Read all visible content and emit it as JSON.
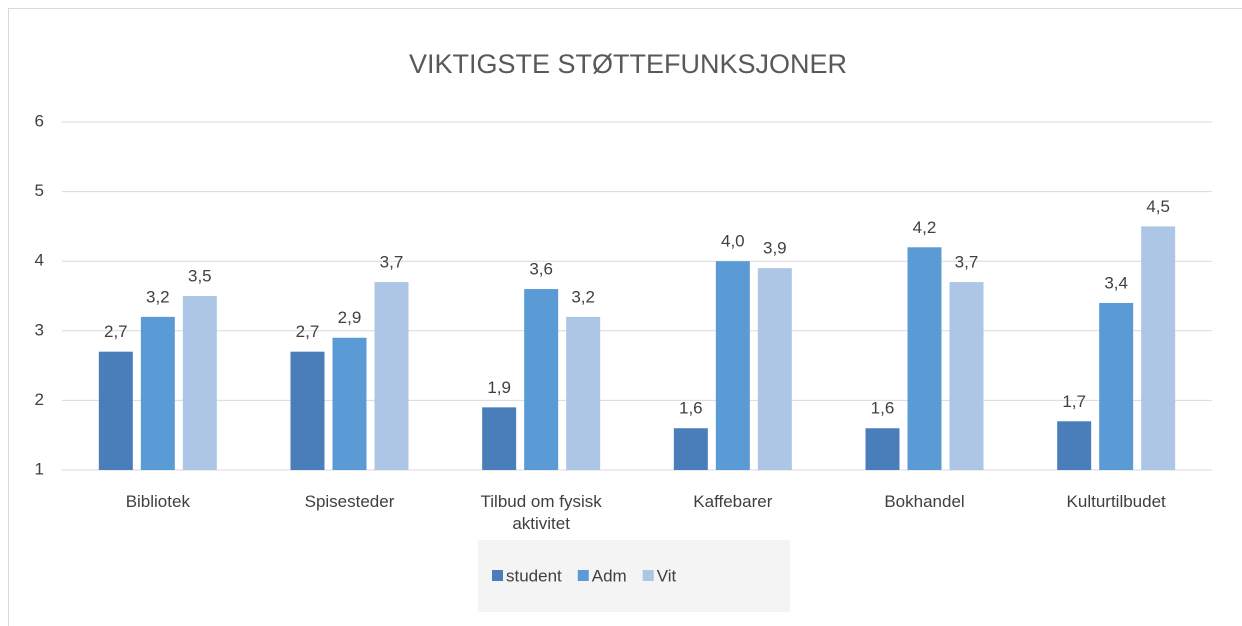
{
  "chart_data": {
    "type": "bar",
    "title": "VIKTIGSTE STØTTEFUNKSJONER",
    "categories": [
      "Bibliotek",
      "Spisesteder",
      "Tilbud om fysisk aktivitet",
      "Kaffebarer",
      "Bokhandel",
      "Kulturtilbudet"
    ],
    "series": [
      {
        "name": "student",
        "color": "#4a7ebb",
        "values": [
          2.7,
          2.7,
          1.9,
          1.6,
          1.6,
          1.7
        ],
        "value_labels": [
          "2,7",
          "2,7",
          "1,9",
          "1,6",
          "1,6",
          "1,7"
        ]
      },
      {
        "name": "Adm",
        "color": "#5b9bd5",
        "values": [
          3.2,
          2.9,
          3.6,
          4.0,
          4.2,
          3.4
        ],
        "value_labels": [
          "3,2",
          "2,9",
          "3,6",
          "4,0",
          "4,2",
          "3,4"
        ]
      },
      {
        "name": "Vit",
        "color": "#adc6e6",
        "values": [
          3.5,
          3.7,
          3.2,
          3.9,
          3.7,
          4.5
        ],
        "value_labels": [
          "3,5",
          "3,7",
          "3,2",
          "3,9",
          "3,7",
          "4,5"
        ]
      }
    ],
    "ylim": [
      1,
      6
    ],
    "yticks": [
      1,
      2,
      3,
      4,
      5,
      6
    ],
    "grid": true,
    "legend": "bottom"
  }
}
